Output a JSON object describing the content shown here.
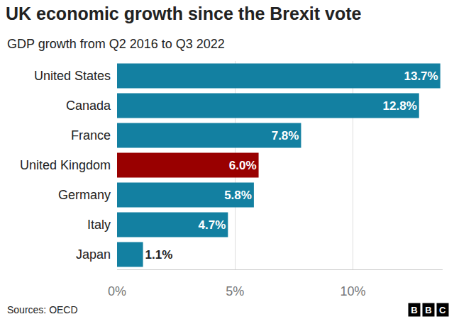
{
  "chart_data": {
    "type": "bar",
    "orientation": "horizontal",
    "title": "UK economic growth since the Brexit vote",
    "subtitle": "GDP growth from Q2 2016 to Q3 2022",
    "source": "Sources: OECD",
    "logo": "BBC",
    "categories": [
      "United States",
      "Canada",
      "France",
      "United Kingdom",
      "Germany",
      "Italy",
      "Japan"
    ],
    "values": [
      13.7,
      12.8,
      7.8,
      6.0,
      5.8,
      4.7,
      1.1
    ],
    "value_labels": [
      "13.7%",
      "12.8%",
      "7.8%",
      "6.0%",
      "5.8%",
      "4.7%",
      "1.1%"
    ],
    "colors": [
      "#1380a1",
      "#1380a1",
      "#1380a1",
      "#990000",
      "#1380a1",
      "#1380a1",
      "#1380a1"
    ],
    "xlim": [
      0,
      13.8
    ],
    "xticks": [
      {
        "value": 0,
        "label": "0%"
      },
      {
        "value": 5,
        "label": "5%"
      },
      {
        "value": 10,
        "label": "10%"
      }
    ],
    "grid": true,
    "data_labels": true
  }
}
